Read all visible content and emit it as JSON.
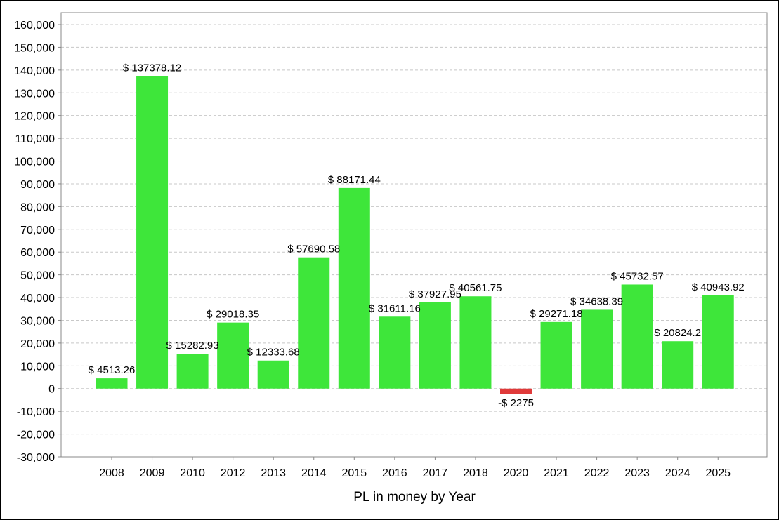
{
  "chart_data": {
    "type": "bar",
    "title": "",
    "xlabel": "PL in money by Year",
    "ylabel": "",
    "ylim": [
      -30000,
      160000
    ],
    "yticks": [
      -30000,
      -20000,
      -10000,
      0,
      10000,
      20000,
      30000,
      40000,
      50000,
      60000,
      70000,
      80000,
      90000,
      100000,
      110000,
      120000,
      130000,
      140000,
      150000,
      160000
    ],
    "ytick_labels": [
      "-30,000",
      "-20,000",
      "-10,000",
      "0",
      "10,000",
      "20,000",
      "30,000",
      "40,000",
      "50,000",
      "60,000",
      "70,000",
      "80,000",
      "90,000",
      "100,000",
      "110,000",
      "120,000",
      "130,000",
      "140,000",
      "150,000",
      "160,000"
    ],
    "grid": true,
    "categories": [
      "2008",
      "2009",
      "2010",
      "2012",
      "2013",
      "2014",
      "2015",
      "2016",
      "2017",
      "2018",
      "2020",
      "2021",
      "2022",
      "2023",
      "2024",
      "2025"
    ],
    "values": [
      4513.26,
      137378.12,
      15282.93,
      29018.35,
      12333.68,
      57690.58,
      88171.44,
      31611.16,
      37927.95,
      40561.75,
      -2275,
      29271.18,
      34638.39,
      45732.57,
      20824.2,
      40943.92
    ],
    "data_labels": [
      "$ 4513.26",
      "$ 137378.12",
      "$ 15282.93",
      "$ 29018.35",
      "$ 12333.68",
      "$ 57690.58",
      "$ 88171.44",
      "$ 31611.16",
      "$ 37927.95",
      "$ 40561.75",
      "-$ 2275",
      "$ 29271.18",
      "$ 34638.39",
      "$ 45732.57",
      "$ 20824.2",
      "$ 40943.92"
    ],
    "colors": {
      "positive": "#3ee63a",
      "negative": "#e03a3a",
      "grid": "#c8c8c8",
      "axis": "#888888"
    }
  }
}
